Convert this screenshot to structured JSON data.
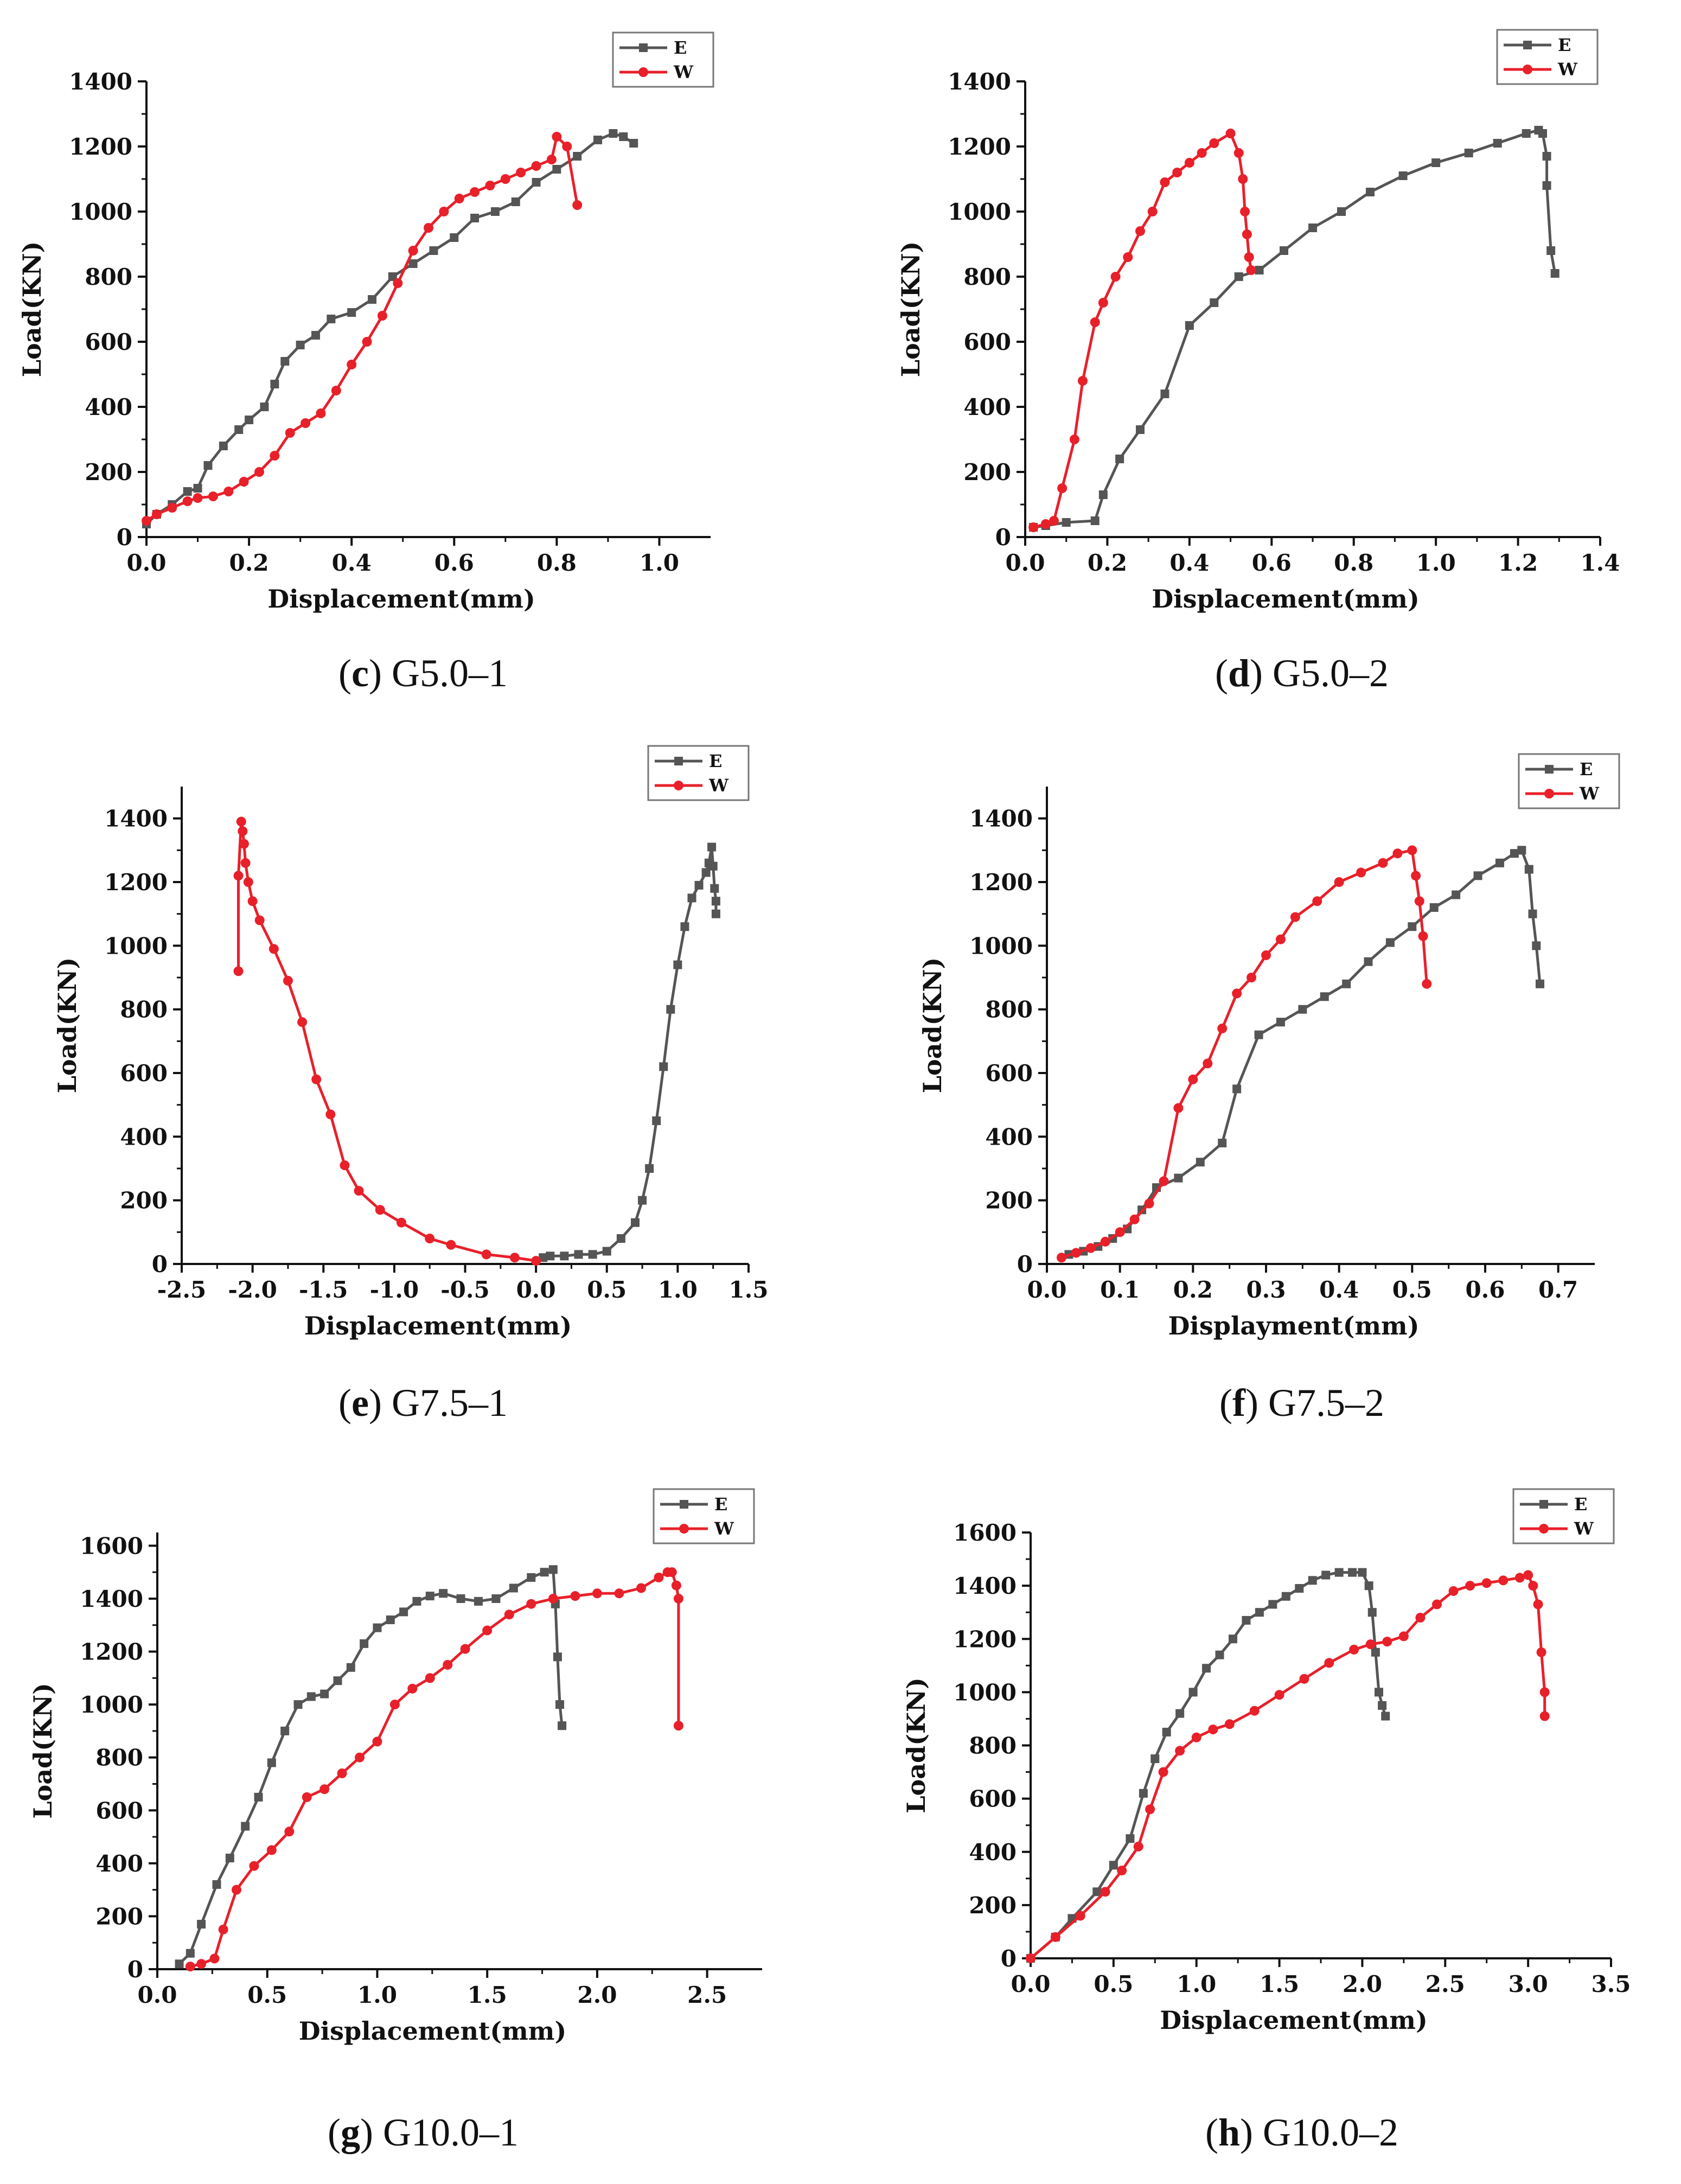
{
  "colors": {
    "E": "#555555",
    "W": "#e8202a",
    "axis": "#111111"
  },
  "chart_data": [
    {
      "id": "c",
      "type": "line",
      "caption_letter": "c",
      "caption_text": "G5.0–1",
      "xlabel": "Displacement(mm)",
      "ylabel": "Load(KN)",
      "xlim": [
        0,
        1.1
      ],
      "ylim": [
        0,
        1400
      ],
      "xticks": [
        "0.0",
        "0.2",
        "0.4",
        "0.6",
        "0.8",
        "1.0"
      ],
      "xtick_values": [
        0,
        0.2,
        0.4,
        0.6,
        0.8,
        1.0
      ],
      "yticks": [
        "0",
        "200",
        "400",
        "600",
        "800",
        "1000",
        "1200",
        "1400"
      ],
      "ytick_values": [
        0,
        200,
        400,
        600,
        800,
        1000,
        1200,
        1400
      ],
      "legend": [
        "E",
        "W"
      ],
      "series": [
        {
          "name": "E",
          "marker": "square",
          "x": [
            0,
            0.02,
            0.05,
            0.08,
            0.1,
            0.12,
            0.15,
            0.18,
            0.2,
            0.23,
            0.25,
            0.27,
            0.3,
            0.33,
            0.36,
            0.4,
            0.44,
            0.48,
            0.52,
            0.56,
            0.6,
            0.64,
            0.68,
            0.72,
            0.76,
            0.8,
            0.84,
            0.88,
            0.91,
            0.93,
            0.95
          ],
          "y": [
            40,
            70,
            100,
            140,
            150,
            220,
            280,
            330,
            360,
            400,
            470,
            540,
            590,
            620,
            670,
            690,
            730,
            800,
            840,
            880,
            920,
            980,
            1000,
            1030,
            1090,
            1130,
            1170,
            1220,
            1240,
            1230,
            1210
          ]
        },
        {
          "name": "W",
          "marker": "circle",
          "x": [
            0,
            0.02,
            0.05,
            0.08,
            0.1,
            0.13,
            0.16,
            0.19,
            0.22,
            0.25,
            0.28,
            0.31,
            0.34,
            0.37,
            0.4,
            0.43,
            0.46,
            0.49,
            0.52,
            0.55,
            0.58,
            0.61,
            0.64,
            0.67,
            0.7,
            0.73,
            0.76,
            0.79,
            0.8,
            0.82,
            0.84
          ],
          "y": [
            50,
            70,
            90,
            110,
            120,
            125,
            140,
            170,
            200,
            250,
            320,
            350,
            380,
            450,
            530,
            600,
            680,
            780,
            880,
            950,
            1000,
            1040,
            1060,
            1080,
            1100,
            1120,
            1140,
            1160,
            1230,
            1200,
            1020
          ]
        }
      ]
    },
    {
      "id": "d",
      "type": "line",
      "caption_letter": "d",
      "caption_text": "G5.0–2",
      "xlabel": "Displacement(mm)",
      "ylabel": "Load(KN)",
      "xlim": [
        0,
        1.4
      ],
      "ylim": [
        0,
        1400
      ],
      "xticks": [
        "0.0",
        "0.2",
        "0.4",
        "0.6",
        "0.8",
        "1.0",
        "1.2",
        "1.4"
      ],
      "xtick_values": [
        0,
        0.2,
        0.4,
        0.6,
        0.8,
        1.0,
        1.2,
        1.4
      ],
      "yticks": [
        "0",
        "200",
        "400",
        "600",
        "800",
        "1000",
        "1200",
        "1400"
      ],
      "ytick_values": [
        0,
        200,
        400,
        600,
        800,
        1000,
        1200,
        1400
      ],
      "legend": [
        "E",
        "W"
      ],
      "series": [
        {
          "name": "E",
          "marker": "square",
          "x": [
            0.02,
            0.05,
            0.1,
            0.17,
            0.19,
            0.23,
            0.28,
            0.34,
            0.4,
            0.46,
            0.52,
            0.57,
            0.63,
            0.7,
            0.77,
            0.84,
            0.92,
            1.0,
            1.08,
            1.15,
            1.22,
            1.25,
            1.26,
            1.27,
            1.27,
            1.28,
            1.29
          ],
          "y": [
            30,
            35,
            45,
            50,
            130,
            240,
            330,
            440,
            650,
            720,
            800,
            820,
            880,
            950,
            1000,
            1060,
            1110,
            1150,
            1180,
            1210,
            1240,
            1250,
            1240,
            1170,
            1080,
            880,
            810
          ]
        },
        {
          "name": "W",
          "marker": "circle",
          "x": [
            0.02,
            0.05,
            0.07,
            0.09,
            0.12,
            0.14,
            0.17,
            0.19,
            0.22,
            0.25,
            0.28,
            0.31,
            0.34,
            0.37,
            0.4,
            0.43,
            0.46,
            0.5,
            0.52,
            0.53,
            0.535,
            0.54,
            0.545,
            0.55
          ],
          "y": [
            30,
            40,
            50,
            150,
            300,
            480,
            660,
            720,
            800,
            860,
            940,
            1000,
            1090,
            1120,
            1150,
            1180,
            1210,
            1240,
            1180,
            1100,
            1000,
            930,
            860,
            820
          ]
        }
      ]
    },
    {
      "id": "e",
      "type": "line",
      "caption_letter": "e",
      "caption_text": "G7.5–1",
      "xlabel": "Displacement(mm)",
      "ylabel": "Load(KN)",
      "xlim": [
        -2.5,
        1.5
      ],
      "ylim": [
        0,
        1500
      ],
      "xticks": [
        "-2.5",
        "-2.0",
        "-1.5",
        "-1.0",
        "-0.5",
        "0.0",
        "0.5",
        "1.0",
        "1.5"
      ],
      "xtick_values": [
        -2.5,
        -2.0,
        -1.5,
        -1.0,
        -0.5,
        0.0,
        0.5,
        1.0,
        1.5
      ],
      "yticks": [
        "0",
        "200",
        "400",
        "600",
        "800",
        "1000",
        "1200",
        "1400"
      ],
      "ytick_values": [
        0,
        200,
        400,
        600,
        800,
        1000,
        1200,
        1400
      ],
      "legend": [
        "E",
        "W"
      ],
      "series": [
        {
          "name": "E",
          "marker": "square",
          "x": [
            0.05,
            0.1,
            0.2,
            0.3,
            0.4,
            0.5,
            0.6,
            0.7,
            0.75,
            0.8,
            0.85,
            0.9,
            0.95,
            1.0,
            1.05,
            1.1,
            1.15,
            1.2,
            1.22,
            1.24,
            1.25,
            1.26,
            1.27,
            1.27
          ],
          "y": [
            20,
            25,
            25,
            30,
            30,
            40,
            80,
            130,
            200,
            300,
            450,
            620,
            800,
            940,
            1060,
            1150,
            1190,
            1230,
            1260,
            1310,
            1250,
            1180,
            1140,
            1100
          ]
        },
        {
          "name": "W",
          "marker": "circle",
          "x": [
            -2.1,
            -2.1,
            -2.08,
            -2.07,
            -2.06,
            -2.05,
            -2.03,
            -2.0,
            -1.95,
            -1.85,
            -1.75,
            -1.65,
            -1.55,
            -1.45,
            -1.35,
            -1.25,
            -1.1,
            -0.95,
            -0.75,
            -0.6,
            -0.35,
            -0.15,
            0.0
          ],
          "y": [
            920,
            1220,
            1390,
            1360,
            1320,
            1260,
            1200,
            1140,
            1080,
            990,
            890,
            760,
            580,
            470,
            310,
            230,
            170,
            130,
            80,
            60,
            30,
            20,
            10
          ]
        }
      ]
    },
    {
      "id": "f",
      "type": "line",
      "caption_letter": "f",
      "caption_text": "G7.5–2",
      "xlabel": "Displayment(mm)",
      "ylabel": "Load(KN)",
      "xlim": [
        0,
        0.75
      ],
      "ylim": [
        0,
        1500
      ],
      "xticks": [
        "0.0",
        "0.1",
        "0.2",
        "0.3",
        "0.4",
        "0.5",
        "0.6",
        "0.7"
      ],
      "xtick_values": [
        0,
        0.1,
        0.2,
        0.3,
        0.4,
        0.5,
        0.6,
        0.7
      ],
      "yticks": [
        "0",
        "200",
        "400",
        "600",
        "800",
        "1000",
        "1200",
        "1400"
      ],
      "ytick_values": [
        0,
        200,
        400,
        600,
        800,
        1000,
        1200,
        1400
      ],
      "legend": [
        "E",
        "W"
      ],
      "series": [
        {
          "name": "E",
          "marker": "square",
          "x": [
            0.03,
            0.05,
            0.07,
            0.09,
            0.11,
            0.13,
            0.15,
            0.18,
            0.21,
            0.24,
            0.26,
            0.29,
            0.32,
            0.35,
            0.38,
            0.41,
            0.44,
            0.47,
            0.5,
            0.53,
            0.56,
            0.59,
            0.62,
            0.64,
            0.65,
            0.66,
            0.665,
            0.67,
            0.675
          ],
          "y": [
            30,
            40,
            55,
            80,
            110,
            170,
            240,
            270,
            320,
            380,
            550,
            720,
            760,
            800,
            840,
            880,
            950,
            1010,
            1060,
            1120,
            1160,
            1220,
            1260,
            1290,
            1300,
            1240,
            1100,
            1000,
            880
          ]
        },
        {
          "name": "W",
          "marker": "circle",
          "x": [
            0.02,
            0.04,
            0.06,
            0.08,
            0.1,
            0.12,
            0.14,
            0.16,
            0.18,
            0.2,
            0.22,
            0.24,
            0.26,
            0.28,
            0.3,
            0.32,
            0.34,
            0.37,
            0.4,
            0.43,
            0.46,
            0.48,
            0.5,
            0.505,
            0.51,
            0.515,
            0.52
          ],
          "y": [
            20,
            35,
            50,
            70,
            100,
            140,
            190,
            260,
            490,
            580,
            630,
            740,
            850,
            900,
            970,
            1020,
            1090,
            1140,
            1200,
            1230,
            1260,
            1290,
            1300,
            1220,
            1140,
            1030,
            880
          ]
        }
      ]
    },
    {
      "id": "g",
      "type": "line",
      "caption_letter": "g",
      "caption_text": "G10.0–1",
      "xlabel": "Displacement(mm)",
      "ylabel": "Load(KN)",
      "xlim": [
        0,
        2.75
      ],
      "ylim": [
        0,
        1650
      ],
      "xticks": [
        "0.0",
        "0.5",
        "1.0",
        "1.5",
        "2.0",
        "2.5"
      ],
      "xtick_values": [
        0,
        0.5,
        1.0,
        1.5,
        2.0,
        2.5
      ],
      "yticks": [
        "0",
        "200",
        "400",
        "600",
        "800",
        "1000",
        "1200",
        "1400",
        "1600"
      ],
      "ytick_values": [
        0,
        200,
        400,
        600,
        800,
        1000,
        1200,
        1400,
        1600
      ],
      "legend": [
        "E",
        "W"
      ],
      "series": [
        {
          "name": "E",
          "marker": "square",
          "x": [
            0.1,
            0.15,
            0.2,
            0.27,
            0.33,
            0.4,
            0.46,
            0.52,
            0.58,
            0.64,
            0.7,
            0.76,
            0.82,
            0.88,
            0.94,
            1.0,
            1.06,
            1.12,
            1.18,
            1.24,
            1.3,
            1.38,
            1.46,
            1.54,
            1.62,
            1.7,
            1.76,
            1.8,
            1.81,
            1.82,
            1.83,
            1.84
          ],
          "y": [
            20,
            60,
            170,
            320,
            420,
            540,
            650,
            780,
            900,
            1000,
            1030,
            1040,
            1090,
            1140,
            1230,
            1290,
            1320,
            1350,
            1390,
            1410,
            1420,
            1400,
            1390,
            1400,
            1440,
            1480,
            1500,
            1510,
            1380,
            1180,
            1000,
            920
          ]
        },
        {
          "name": "W",
          "marker": "circle",
          "x": [
            0.15,
            0.2,
            0.26,
            0.3,
            0.36,
            0.44,
            0.52,
            0.6,
            0.68,
            0.76,
            0.84,
            0.92,
            1.0,
            1.08,
            1.16,
            1.24,
            1.32,
            1.4,
            1.5,
            1.6,
            1.7,
            1.8,
            1.9,
            2.0,
            2.1,
            2.2,
            2.28,
            2.32,
            2.34,
            2.36,
            2.37,
            2.37
          ],
          "y": [
            10,
            20,
            40,
            150,
            300,
            390,
            450,
            520,
            650,
            680,
            740,
            800,
            860,
            1000,
            1060,
            1100,
            1150,
            1210,
            1280,
            1340,
            1380,
            1400,
            1410,
            1420,
            1420,
            1440,
            1480,
            1500,
            1500,
            1450,
            1400,
            920
          ]
        }
      ]
    },
    {
      "id": "h",
      "type": "line",
      "caption_letter": "h",
      "caption_text": "G10.0–2",
      "xlabel": "Displacement(mm)",
      "ylabel": "Load(KN)",
      "xlim": [
        0,
        3.5
      ],
      "ylim": [
        0,
        1600
      ],
      "xticks": [
        "0.0",
        "0.5",
        "1.0",
        "1.5",
        "2.0",
        "2.5",
        "3.0",
        "3.5"
      ],
      "xtick_values": [
        0,
        0.5,
        1.0,
        1.5,
        2.0,
        2.5,
        3.0,
        3.5
      ],
      "yticks": [
        "0",
        "200",
        "400",
        "600",
        "800",
        "1000",
        "1200",
        "1400",
        "1600"
      ],
      "ytick_values": [
        0,
        200,
        400,
        600,
        800,
        1000,
        1200,
        1400,
        1600
      ],
      "legend": [
        "E",
        "W"
      ],
      "series": [
        {
          "name": "E",
          "marker": "square",
          "x": [
            0.0,
            0.15,
            0.25,
            0.4,
            0.5,
            0.6,
            0.68,
            0.75,
            0.82,
            0.9,
            0.98,
            1.06,
            1.14,
            1.22,
            1.3,
            1.38,
            1.46,
            1.54,
            1.62,
            1.7,
            1.78,
            1.86,
            1.94,
            2.0,
            2.04,
            2.06,
            2.08,
            2.1,
            2.12,
            2.14
          ],
          "y": [
            0,
            80,
            150,
            250,
            350,
            450,
            620,
            750,
            850,
            920,
            1000,
            1090,
            1140,
            1200,
            1270,
            1300,
            1330,
            1360,
            1390,
            1420,
            1440,
            1450,
            1450,
            1450,
            1400,
            1300,
            1150,
            1000,
            950,
            910
          ]
        },
        {
          "name": "W",
          "marker": "circle",
          "x": [
            0.0,
            0.15,
            0.3,
            0.45,
            0.55,
            0.65,
            0.72,
            0.8,
            0.9,
            1.0,
            1.1,
            1.2,
            1.35,
            1.5,
            1.65,
            1.8,
            1.95,
            2.05,
            2.15,
            2.25,
            2.35,
            2.45,
            2.55,
            2.65,
            2.75,
            2.85,
            2.95,
            3.0,
            3.03,
            3.06,
            3.08,
            3.1,
            3.1
          ],
          "y": [
            0,
            80,
            160,
            250,
            330,
            420,
            560,
            700,
            780,
            830,
            860,
            880,
            930,
            990,
            1050,
            1110,
            1160,
            1180,
            1190,
            1210,
            1280,
            1330,
            1380,
            1400,
            1410,
            1420,
            1430,
            1440,
            1400,
            1330,
            1150,
            1000,
            910
          ]
        }
      ]
    }
  ]
}
